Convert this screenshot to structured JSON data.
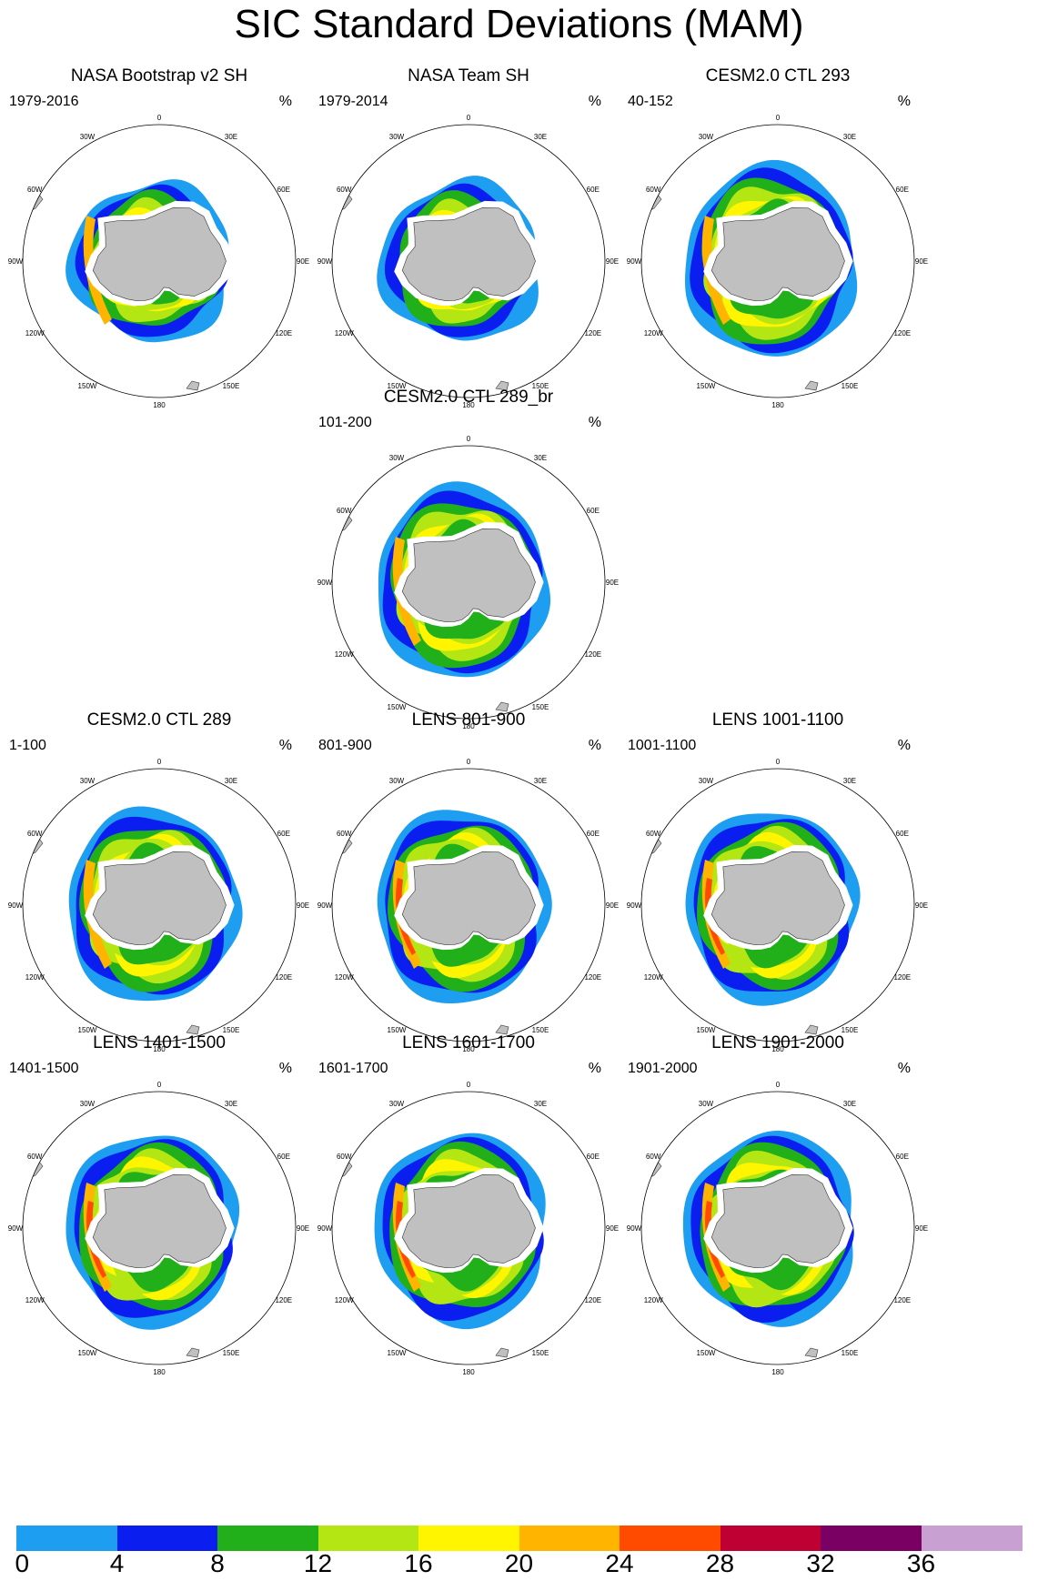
{
  "title": "SIC Standard Deviations (MAM)",
  "panels": [
    {
      "title": "NASA Bootstrap v2 SH",
      "period": "1979-2016",
      "unit": "%"
    },
    {
      "title": "NASA Team SH",
      "period": "1979-2014",
      "unit": "%"
    },
    {
      "title": "CESM2.0 CTL 293",
      "period": "40-152",
      "unit": "%"
    },
    {
      "title": "CESM2.0 CTL 289_br",
      "period": "101-200",
      "unit": "%"
    },
    {
      "title": "CESM2.0 CTL 289",
      "period": "1-100",
      "unit": "%"
    },
    {
      "title": "LENS 801-900",
      "period": "801-900",
      "unit": "%"
    },
    {
      "title": "LENS 1001-1100",
      "period": "1001-1100",
      "unit": "%"
    },
    {
      "title": "LENS 1401-1500",
      "period": "1401-1500",
      "unit": "%"
    },
    {
      "title": "LENS 1601-1700",
      "period": "1601-1700",
      "unit": "%"
    },
    {
      "title": "LENS 1901-2000",
      "period": "1901-2000",
      "unit": "%"
    }
  ],
  "longitude_labels": [
    {
      "lon": 0,
      "label": "0"
    },
    {
      "lon": 30,
      "label": "30E"
    },
    {
      "lon": 60,
      "label": "60E"
    },
    {
      "lon": 90,
      "label": "90E"
    },
    {
      "lon": 120,
      "label": "120E"
    },
    {
      "lon": 150,
      "label": "150E"
    },
    {
      "lon": 180,
      "label": "180"
    },
    {
      "lon": 210,
      "label": "150W"
    },
    {
      "lon": 240,
      "label": "120W"
    },
    {
      "lon": 270,
      "label": "90W"
    },
    {
      "lon": 300,
      "label": "60W"
    },
    {
      "lon": 330,
      "label": "30W"
    }
  ],
  "colorbar": {
    "labels": [
      "0",
      "4",
      "8",
      "12",
      "16",
      "20",
      "24",
      "28",
      "32",
      "36"
    ],
    "colors": [
      "#1e9ef0",
      "#0a1ef0",
      "#22b01a",
      "#b4e614",
      "#fff500",
      "#ffb400",
      "#ff4b00",
      "#be0032",
      "#7a0064",
      "#c8a0d2"
    ]
  }
}
